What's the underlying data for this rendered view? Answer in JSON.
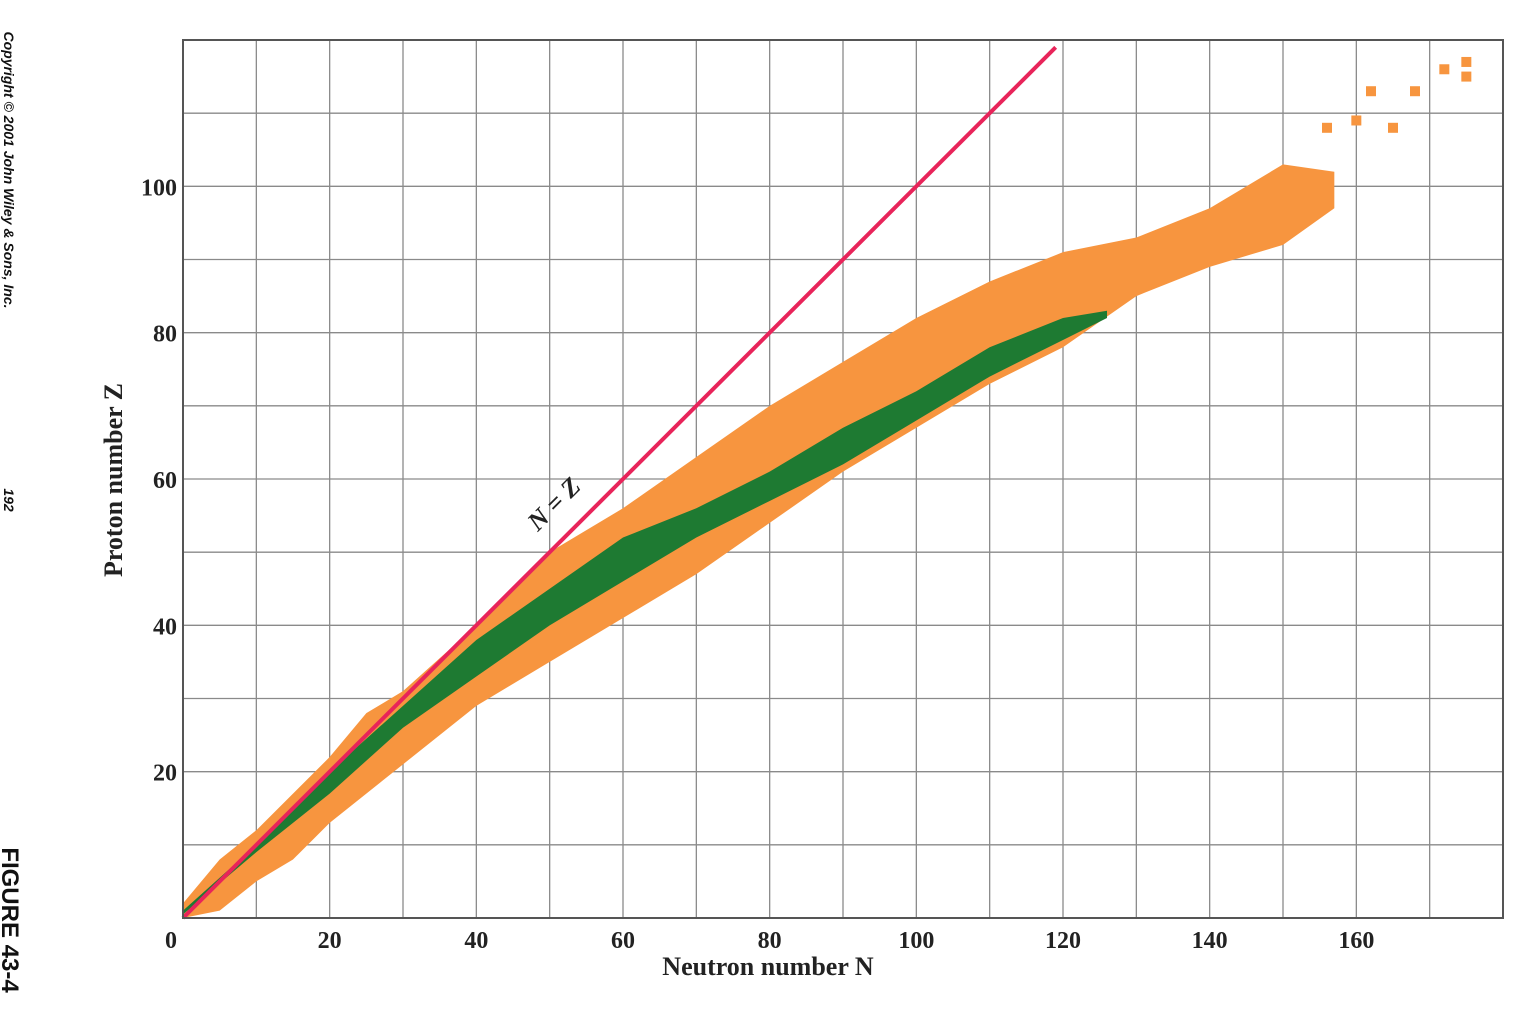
{
  "chart_data": {
    "type": "band",
    "xlabel": "Neutron number N",
    "ylabel": "Proton number Z",
    "annotation": "N = Z",
    "side_texts": [
      "Copyright © 2001 John Wiley & Sons, Inc.",
      "192"
    ],
    "figure_label": "FIGURE 43-4",
    "xlim": [
      0,
      180
    ],
    "ylim": [
      0,
      120
    ],
    "xticks": [
      0,
      20,
      40,
      60,
      80,
      100,
      120,
      140,
      160
    ],
    "yticks": [
      20,
      40,
      60,
      80,
      100
    ],
    "xgrid_minor": [
      10,
      30,
      50,
      70,
      90,
      110,
      130,
      150,
      170
    ],
    "ygrid_minor": [
      10,
      30,
      50,
      70,
      90,
      110
    ],
    "grid": true,
    "bands": [
      {
        "color": "#f7953f",
        "n": [
          0,
          5,
          10,
          15,
          20,
          25,
          30,
          40,
          50,
          60,
          70,
          80,
          90,
          100,
          110,
          120,
          130,
          140,
          150,
          157
        ],
        "zlow": [
          0,
          1,
          5,
          8,
          13,
          17,
          21,
          29,
          35,
          41,
          47,
          54,
          61,
          67,
          73,
          78,
          85,
          89,
          92,
          97
        ],
        "zhigh": [
          2,
          8,
          12,
          17,
          22,
          28,
          31,
          40,
          50,
          56,
          63,
          70,
          76,
          82,
          87,
          91,
          93,
          97,
          103,
          102
        ]
      },
      {
        "color": "#1e7a32",
        "n": [
          0,
          10,
          20,
          30,
          40,
          50,
          60,
          70,
          80,
          90,
          100,
          110,
          120,
          126
        ],
        "zlow": [
          0.5,
          9,
          17,
          26,
          33,
          40,
          46,
          52,
          57,
          62,
          68,
          74,
          79,
          82
        ],
        "zhigh": [
          1,
          10,
          20,
          29,
          38,
          45,
          52,
          56,
          61,
          67,
          72,
          78,
          82,
          83
        ]
      }
    ],
    "points": {
      "color": "#f7953f",
      "x": [
        156,
        160,
        165,
        162,
        168,
        172,
        175,
        175
      ],
      "y": [
        108,
        109,
        108,
        113,
        113,
        116,
        117,
        115
      ]
    },
    "line": {
      "color": "#e8245a",
      "x": [
        0,
        119
      ],
      "y": [
        0,
        119
      ]
    }
  }
}
